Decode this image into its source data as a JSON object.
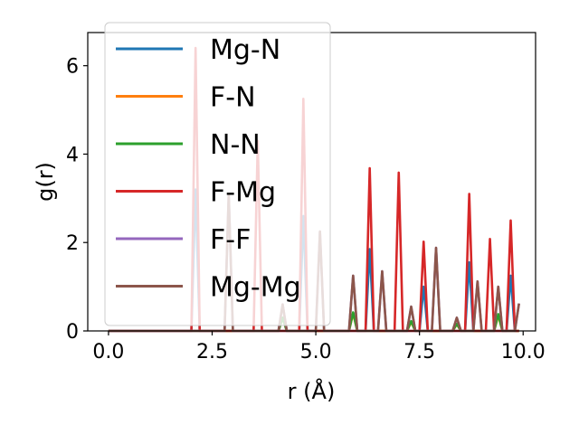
{
  "chart_data": {
    "type": "line",
    "title": "",
    "xlabel": "r (Å)",
    "ylabel": "g(r)",
    "xlim": [
      -0.5,
      10.3
    ],
    "ylim": [
      0,
      6.75
    ],
    "xticks": [
      0.0,
      2.5,
      5.0,
      7.5,
      10.0
    ],
    "xtick_labels": [
      "0.0",
      "2.5",
      "5.0",
      "7.5",
      "10.0"
    ],
    "yticks": [
      0,
      2,
      4,
      6
    ],
    "ytick_labels": [
      "0",
      "2",
      "4",
      "6"
    ],
    "grid": false,
    "legend_position": "top-left",
    "peak_half_width": 0.1,
    "x_end": 9.9,
    "series": [
      {
        "name": "Mg-N",
        "color": "#1f77b4",
        "peaks": [
          [
            2.1,
            3.2
          ],
          [
            4.7,
            2.6
          ],
          [
            6.3,
            1.85
          ],
          [
            7.6,
            1.0
          ],
          [
            8.7,
            1.55
          ],
          [
            9.7,
            1.25
          ]
        ]
      },
      {
        "name": "F-N",
        "color": "#ff7f0e",
        "peaks": [
          [
            4.2,
            0.3
          ],
          [
            5.9,
            0.4
          ],
          [
            7.3,
            0.2
          ],
          [
            8.4,
            0.15
          ],
          [
            9.4,
            0.35
          ]
        ]
      },
      {
        "name": "N-N",
        "color": "#2ca02c",
        "peaks": [
          [
            4.2,
            0.3
          ],
          [
            5.9,
            0.42
          ],
          [
            7.3,
            0.22
          ],
          [
            8.4,
            0.16
          ],
          [
            9.4,
            0.38
          ]
        ]
      },
      {
        "name": "F-Mg",
        "color": "#d62728",
        "peaks": [
          [
            2.1,
            6.4
          ],
          [
            3.6,
            4.3
          ],
          [
            4.7,
            5.25
          ],
          [
            6.3,
            3.68
          ],
          [
            7.0,
            3.58
          ],
          [
            7.6,
            2.02
          ],
          [
            8.7,
            3.1
          ],
          [
            9.2,
            2.08
          ],
          [
            9.7,
            2.5
          ]
        ]
      },
      {
        "name": "F-F",
        "color": "#9467bd",
        "peaks": [
          [
            2.9,
            3.1
          ],
          [
            4.2,
            0.6
          ],
          [
            5.1,
            2.25
          ],
          [
            5.9,
            1.25
          ],
          [
            6.6,
            1.35
          ],
          [
            7.3,
            0.55
          ],
          [
            7.9,
            1.88
          ],
          [
            8.4,
            0.3
          ],
          [
            8.9,
            1.12
          ],
          [
            9.4,
            1.0
          ],
          [
            9.9,
            0.62
          ]
        ]
      },
      {
        "name": "Mg-Mg",
        "color": "#8c564b",
        "peaks": [
          [
            2.9,
            3.1
          ],
          [
            4.2,
            0.6
          ],
          [
            5.1,
            2.25
          ],
          [
            5.9,
            1.25
          ],
          [
            6.6,
            1.35
          ],
          [
            7.3,
            0.55
          ],
          [
            7.9,
            1.88
          ],
          [
            8.4,
            0.3
          ],
          [
            8.9,
            1.12
          ],
          [
            9.4,
            1.0
          ],
          [
            9.9,
            0.62
          ]
        ]
      }
    ]
  }
}
